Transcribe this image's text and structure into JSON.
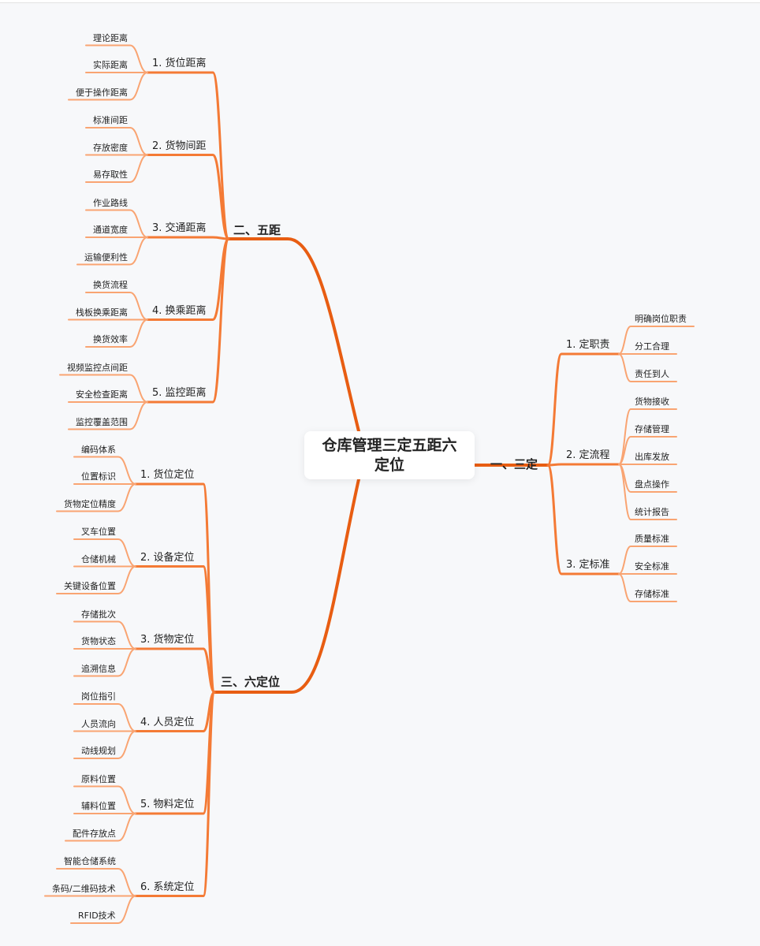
{
  "title": "仓库管理三定五距六定位",
  "colors": {
    "branch": "#e85d12",
    "sub": "#f47a35",
    "leaf": "#f9a472"
  },
  "branches": [
    {
      "label": "一、三定",
      "children": [
        {
          "label": "1. 定职责",
          "leaves": [
            "明确岗位职责",
            "分工合理",
            "责任到人"
          ]
        },
        {
          "label": "2. 定流程",
          "leaves": [
            "货物接收",
            "存储管理",
            "出库发放",
            "盘点操作",
            "统计报告"
          ]
        },
        {
          "label": "3. 定标准",
          "leaves": [
            "质量标准",
            "安全标准",
            "存储标准"
          ]
        }
      ]
    },
    {
      "label": "二、五距",
      "children": [
        {
          "label": "1. 货位距离",
          "leaves": [
            "理论距离",
            "实际距离",
            "便于操作距离"
          ]
        },
        {
          "label": "2. 货物间距",
          "leaves": [
            "标准间距",
            "存放密度",
            "易存取性"
          ]
        },
        {
          "label": "3. 交通距离",
          "leaves": [
            "作业路线",
            "通道宽度",
            "运输便利性"
          ]
        },
        {
          "label": "4. 换乘距离",
          "leaves": [
            "换货流程",
            "栈板换乘距离",
            "换货效率"
          ]
        },
        {
          "label": "5. 监控距离",
          "leaves": [
            "视频监控点间距",
            "安全检查距离",
            "监控覆盖范围"
          ]
        }
      ]
    },
    {
      "label": "三、六定位",
      "children": [
        {
          "label": "1. 货位定位",
          "leaves": [
            "编码体系",
            "位置标识",
            "货物定位精度"
          ]
        },
        {
          "label": "2. 设备定位",
          "leaves": [
            "叉车位置",
            "仓储机械",
            "关键设备位置"
          ]
        },
        {
          "label": "3. 货物定位",
          "leaves": [
            "存储批次",
            "货物状态",
            "追溯信息"
          ]
        },
        {
          "label": "4. 人员定位",
          "leaves": [
            "岗位指引",
            "人员流向",
            "动线规划"
          ]
        },
        {
          "label": "5. 物料定位",
          "leaves": [
            "原料位置",
            "辅料位置",
            "配件存放点"
          ]
        },
        {
          "label": "6. 系统定位",
          "leaves": [
            "智能仓储系统",
            "条码/二维码技术",
            "RFID技术"
          ]
        }
      ]
    }
  ]
}
